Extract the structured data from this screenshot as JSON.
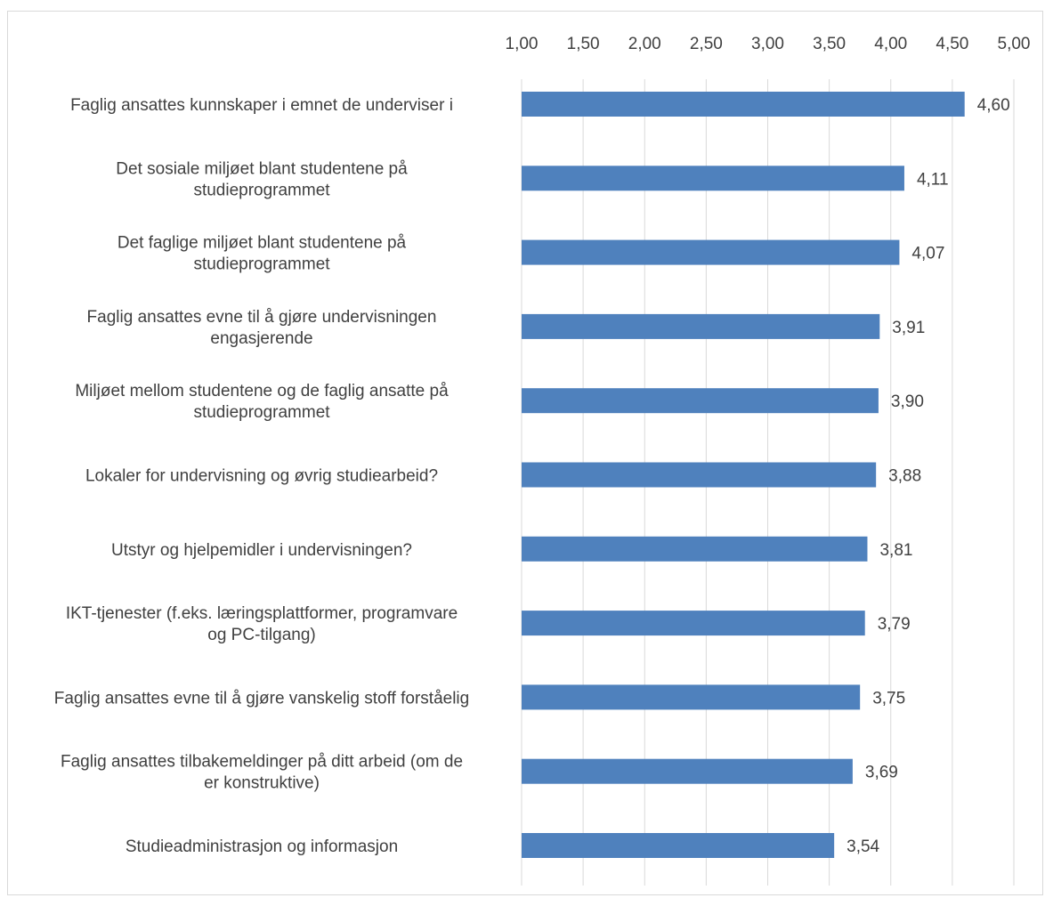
{
  "chart_data": {
    "type": "bar",
    "orientation": "horizontal",
    "categories": [
      "Faglig ansattes kunnskaper i emnet de underviser i",
      "Det sosiale miljøet blant studentene på studieprogrammet",
      "Det faglige miljøet blant studentene på studieprogrammet",
      "Faglig ansattes evne til å gjøre undervisningen engasjerende",
      "Miljøet mellom studentene og de faglig ansatte på studieprogrammet",
      "Lokaler for undervisning og øvrig studiearbeid?",
      "Utstyr og hjelpemidler i undervisningen?",
      "IKT-tjenester (f.eks. læringsplattformer, programvare og PC-tilgang)",
      "Faglig ansattes evne til å gjøre vanskelig stoff forståelig",
      "Faglig ansattes tilbakemeldinger på ditt arbeid (om de er konstruktive)",
      "Studieadministrasjon og informasjon"
    ],
    "category_lines": [
      [
        "Faglig ansattes kunnskaper i emnet de underviser i"
      ],
      [
        "Det sosiale miljøet blant studentene på",
        "studieprogrammet"
      ],
      [
        "Det faglige miljøet blant studentene på",
        "studieprogrammet"
      ],
      [
        "Faglig ansattes evne til å gjøre undervisningen",
        "engasjerende"
      ],
      [
        "Miljøet mellom studentene og de faglig ansatte på",
        "studieprogrammet"
      ],
      [
        "Lokaler for undervisning og øvrig studiearbeid?"
      ],
      [
        "Utstyr og hjelpemidler i undervisningen?"
      ],
      [
        "IKT-tjenester (f.eks. læringsplattformer, programvare",
        "og PC-tilgang)"
      ],
      [
        "Faglig ansattes evne til å gjøre vanskelig stoff forståelig"
      ],
      [
        "Faglig ansattes tilbakemeldinger på ditt arbeid (om de",
        "er konstruktive)"
      ],
      [
        "Studieadministrasjon og informasjon"
      ]
    ],
    "values": [
      4.6,
      4.11,
      4.07,
      3.91,
      3.9,
      3.88,
      3.81,
      3.79,
      3.75,
      3.69,
      3.54
    ],
    "value_labels": [
      "4,60",
      "4,11",
      "4,07",
      "3,91",
      "3,90",
      "3,88",
      "3,81",
      "3,79",
      "3,75",
      "3,69",
      "3,54"
    ],
    "xlim": [
      1.0,
      5.0
    ],
    "xticks": [
      1.0,
      1.5,
      2.0,
      2.5,
      3.0,
      3.5,
      4.0,
      4.5,
      5.0
    ],
    "xtick_labels": [
      "1,00",
      "1,50",
      "2,00",
      "2,50",
      "3,00",
      "3,50",
      "4,00",
      "4,50",
      "5,00"
    ],
    "axis_position": "top",
    "grid": true,
    "legend": false,
    "title": "",
    "xlabel": "",
    "ylabel": "",
    "bar_color": "#4f81bd",
    "grid_color": "#d9d9d9",
    "text_color": "#404040"
  }
}
